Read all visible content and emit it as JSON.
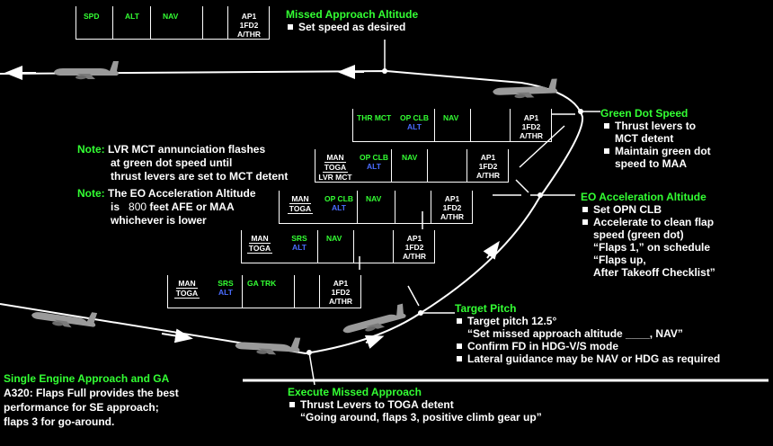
{
  "fma_top": {
    "c1": "SPD",
    "c2": "ALT",
    "c3": "NAV",
    "ap": "AP1",
    "fd": "1FD2",
    "athr": "A/THR"
  },
  "fma_thr": {
    "c1": "THR MCT",
    "c2a": "OP CLB",
    "c2b": "ALT",
    "c3": "NAV",
    "ap": "AP1",
    "fd": "1FD2",
    "athr": "A/THR"
  },
  "fma_lvr": {
    "c1a": "MAN",
    "c1b": "TOGA",
    "c1c": "LVR MCT",
    "c2a": "OP CLB",
    "c2b": "ALT",
    "c3": "NAV",
    "ap": "AP1",
    "fd": "1FD2",
    "athr": "A/THR"
  },
  "fma_eo": {
    "c1a": "MAN",
    "c1b": "TOGA",
    "c2a": "OP CLB",
    "c2b": "ALT",
    "c3": "NAV",
    "ap": "AP1",
    "fd": "1FD2",
    "athr": "A/THR"
  },
  "fma_srs": {
    "c1a": "MAN",
    "c1b": "TOGA",
    "c2a": "SRS",
    "c2b": "ALT",
    "c3": "NAV",
    "ap": "AP1",
    "fd": "1FD2",
    "athr": "A/THR"
  },
  "fma_ga": {
    "c1a": "MAN",
    "c1b": "TOGA",
    "c2a": "SRS",
    "c2b": "ALT",
    "c3": "GA TRK",
    "ap": "AP1",
    "fd": "1FD2",
    "athr": "A/THR"
  },
  "missed_alt": {
    "title": "Missed Approach Altitude",
    "items": [
      "Set speed as desired"
    ]
  },
  "green_dot": {
    "title": "Green Dot Speed",
    "items": [
      "Thrust levers to",
      "Maintain green dot"
    ],
    "cont": [
      "MCT detent",
      "speed to MAA"
    ]
  },
  "eo_accel": {
    "title": "EO Acceleration Altitude",
    "i1": "Set OPN CLB",
    "i2": "Accelerate to clean flap",
    "l1": "speed (green dot)",
    "l2": "“Flaps 1,” on schedule",
    "l3": "“Flaps up,",
    "l4": "After Takeoff Checklist”"
  },
  "target_pitch": {
    "title": "Target Pitch",
    "i1": "Target pitch 12.5°",
    "l1": "“Set missed approach altitude ____, NAV”",
    "i2": "Confirm FD in HDG-V/S mode",
    "i3": "Lateral guidance may be NAV or HDG as required"
  },
  "execute": {
    "title": "Execute Missed Approach",
    "i1": "Thrust Levers to TOGA detent",
    "l1": "“Going around, flaps 3, positive climb gear up”"
  },
  "note1": {
    "label": "Note:",
    "l1": "LVR MCT annunciation flashes",
    "l2": "at green dot speed until",
    "l3": "thrust levers are set to MCT detent"
  },
  "note2": {
    "label": "Note:",
    "l1": "The EO Acceleration Altitude",
    "l2a": "is",
    "l2b": "800",
    "l2c": "feet AFE or MAA",
    "l3": "whichever is lower"
  },
  "single": {
    "title": "Single Engine Approach and GA",
    "l1": "A320: Flaps Full provides the best",
    "l2": "performance for SE approach;",
    "l3": "flaps 3 for go-around."
  },
  "colors": {
    "green": "#33ff33",
    "blue": "#4a6cff",
    "white": "#ffffff",
    "background": "#000000"
  }
}
